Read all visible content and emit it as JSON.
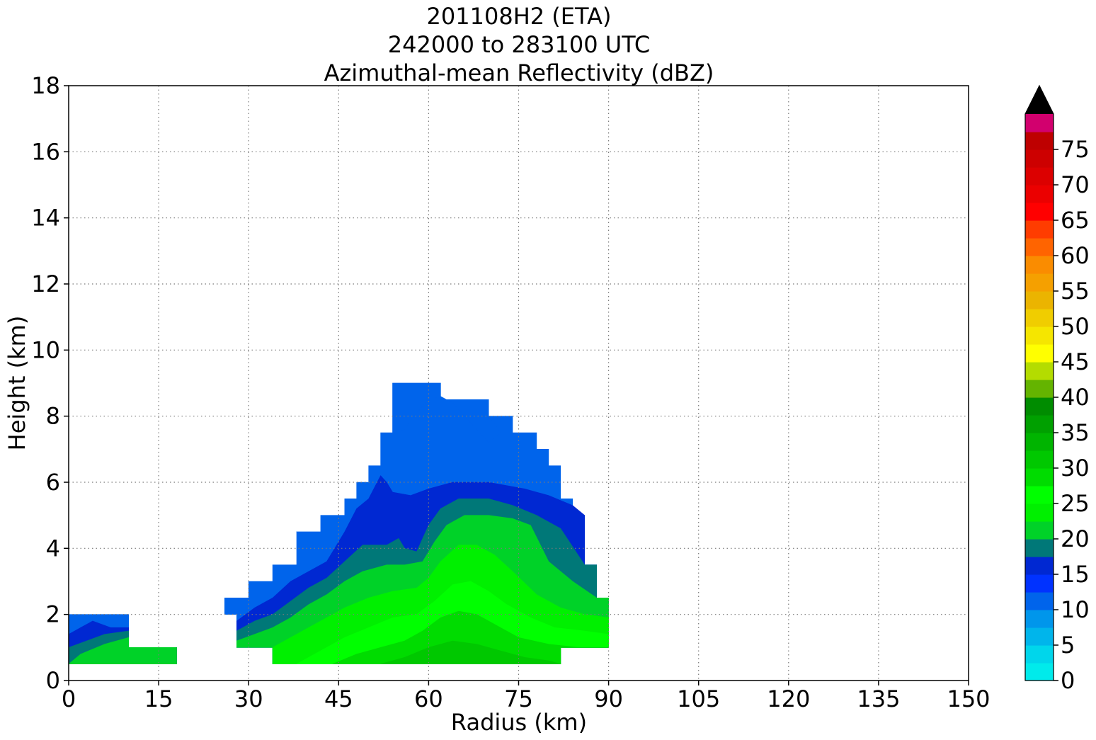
{
  "chart_data": {
    "type": "heatmap",
    "title_lines": [
      "201108H2 (ETA)",
      "242000 to 283100 UTC",
      "Azimuthal-mean Reflectivity (dBZ)"
    ],
    "xlabel": "Radius (km)",
    "ylabel": "Height (km)",
    "xlim": [
      0,
      150
    ],
    "ylim": [
      0,
      18
    ],
    "xticks": [
      "0",
      "15",
      "30",
      "45",
      "60",
      "75",
      "90",
      "105",
      "120",
      "135",
      "150"
    ],
    "yticks": [
      "0",
      "2",
      "4",
      "6",
      "8",
      "10",
      "12",
      "14",
      "16",
      "18"
    ],
    "grid": true,
    "colorbar": {
      "levels": [
        0,
        2.5,
        5,
        7.5,
        10,
        12.5,
        15,
        17.5,
        20,
        22.5,
        25,
        27.5,
        30,
        32.5,
        35,
        37.5,
        40,
        42.5,
        45,
        47.5,
        50,
        52.5,
        55,
        57.5,
        60,
        62.5,
        65,
        67.5,
        70,
        72.5,
        75,
        77.5,
        80
      ],
      "colors": [
        "#00ebeb",
        "#00d6eb",
        "#00b5eb",
        "#0096eb",
        "#0064eb",
        "#0032ff",
        "#0028d2",
        "#007878",
        "#00d228",
        "#00f000",
        "#00ff00",
        "#00dc00",
        "#00c800",
        "#00b400",
        "#00a000",
        "#008c00",
        "#64b400",
        "#b4dc00",
        "#ffff00",
        "#f5e600",
        "#f0cd00",
        "#ebb400",
        "#f5a000",
        "#fa8c00",
        "#ff6400",
        "#ff3c00",
        "#ff0000",
        "#eb0000",
        "#dc0000",
        "#cd0000",
        "#be0000",
        "#d2006e",
        "#ff00aa"
      ],
      "ticks": [
        "0",
        "5",
        "10",
        "15",
        "20",
        "25",
        "30",
        "35",
        "40",
        "45",
        "50",
        "55",
        "60",
        "65",
        "70",
        "75"
      ],
      "extend": "max"
    },
    "regions": [
      {
        "dbz": 11,
        "points": [
          [
            0,
            0.5
          ],
          [
            0,
            2
          ],
          [
            10,
            2
          ],
          [
            10,
            1
          ],
          [
            18,
            1
          ],
          [
            18,
            0.5
          ]
        ]
      },
      {
        "dbz": 16,
        "points": [
          [
            0,
            0.5
          ],
          [
            0,
            1.4
          ],
          [
            2,
            1.6
          ],
          [
            4,
            1.8
          ],
          [
            7,
            1.6
          ],
          [
            10,
            1.6
          ],
          [
            10,
            1
          ],
          [
            18,
            1
          ],
          [
            18,
            0.5
          ]
        ]
      },
      {
        "dbz": 18,
        "points": [
          [
            0,
            0.5
          ],
          [
            0,
            1.0
          ],
          [
            3,
            1.2
          ],
          [
            6,
            1.4
          ],
          [
            10,
            1.5
          ],
          [
            10,
            1
          ],
          [
            18,
            1
          ],
          [
            18,
            0.5
          ]
        ]
      },
      {
        "dbz": 20,
        "points": [
          [
            0,
            0.5
          ],
          [
            2,
            0.8
          ],
          [
            6,
            1.1
          ],
          [
            10,
            1.3
          ],
          [
            10,
            1
          ],
          [
            18,
            1
          ],
          [
            18,
            0.5
          ]
        ]
      },
      {
        "dbz": 11,
        "points": [
          [
            26,
            2
          ],
          [
            26,
            2.5
          ],
          [
            30,
            2.5
          ],
          [
            30,
            3
          ],
          [
            34,
            3
          ],
          [
            34,
            3.5
          ],
          [
            38,
            3.5
          ],
          [
            38,
            4.5
          ],
          [
            42,
            4.5
          ],
          [
            42,
            5
          ],
          [
            46,
            5
          ],
          [
            46,
            5.5
          ],
          [
            48,
            5.5
          ],
          [
            48,
            6
          ],
          [
            50,
            6
          ],
          [
            50,
            6.5
          ],
          [
            52,
            6.5
          ],
          [
            52,
            7.5
          ],
          [
            54,
            7.5
          ],
          [
            54,
            9
          ],
          [
            62,
            9
          ],
          [
            62,
            8.5
          ],
          [
            70,
            8.5
          ],
          [
            70,
            8
          ],
          [
            74,
            8
          ],
          [
            74,
            7.5
          ],
          [
            78,
            7.5
          ],
          [
            78,
            7
          ],
          [
            80,
            7
          ],
          [
            80,
            6.5
          ],
          [
            82,
            6.5
          ],
          [
            82,
            5.5
          ],
          [
            84,
            5.5
          ],
          [
            84,
            5
          ],
          [
            86,
            5
          ],
          [
            86,
            3.5
          ],
          [
            88,
            3.5
          ],
          [
            88,
            2.5
          ],
          [
            90,
            2.5
          ],
          [
            90,
            1
          ],
          [
            82,
            1
          ],
          [
            82,
            0.5
          ],
          [
            34,
            0.5
          ],
          [
            34,
            1
          ],
          [
            28,
            1
          ],
          [
            28,
            2
          ]
        ]
      },
      {
        "dbz": 16,
        "points": [
          [
            28,
            1
          ],
          [
            28,
            1.8
          ],
          [
            31,
            2.2
          ],
          [
            34,
            2.5
          ],
          [
            37,
            3.0
          ],
          [
            40,
            3.3
          ],
          [
            43,
            3.6
          ],
          [
            46,
            4.5
          ],
          [
            48,
            5.2
          ],
          [
            50,
            5.5
          ],
          [
            52,
            6.2
          ],
          [
            53,
            6
          ],
          [
            54,
            5.7
          ],
          [
            57,
            5.6
          ],
          [
            60,
            5.8
          ],
          [
            64,
            6.0
          ],
          [
            70,
            6.0
          ],
          [
            76,
            5.8
          ],
          [
            80,
            5.6
          ],
          [
            84,
            5.3
          ],
          [
            86,
            5
          ],
          [
            86,
            3.5
          ],
          [
            88,
            3.5
          ],
          [
            88,
            2.5
          ],
          [
            90,
            2.5
          ],
          [
            90,
            1
          ],
          [
            82,
            1
          ],
          [
            82,
            0.5
          ],
          [
            34,
            0.5
          ],
          [
            34,
            1
          ]
        ]
      },
      {
        "dbz": 18,
        "points": [
          [
            28,
            1
          ],
          [
            28,
            1.5
          ],
          [
            31,
            1.8
          ],
          [
            34,
            2.0
          ],
          [
            37,
            2.4
          ],
          [
            40,
            2.8
          ],
          [
            43,
            3.1
          ],
          [
            46,
            3.6
          ],
          [
            49,
            4.1
          ],
          [
            53,
            4.1
          ],
          [
            55,
            4.3
          ],
          [
            56,
            4.0
          ],
          [
            58,
            3.9
          ],
          [
            60,
            4.7
          ],
          [
            62,
            5.2
          ],
          [
            65,
            5.5
          ],
          [
            70,
            5.5
          ],
          [
            74,
            5.3
          ],
          [
            78,
            5.0
          ],
          [
            82,
            4.6
          ],
          [
            86,
            3.5
          ],
          [
            88,
            3.5
          ],
          [
            88,
            2.5
          ],
          [
            90,
            2.5
          ],
          [
            90,
            1
          ],
          [
            82,
            1
          ],
          [
            82,
            0.5
          ],
          [
            34,
            0.5
          ],
          [
            34,
            1
          ]
        ]
      },
      {
        "dbz": 20,
        "points": [
          [
            28,
            1
          ],
          [
            28,
            1.2
          ],
          [
            31,
            1.4
          ],
          [
            34,
            1.6
          ],
          [
            37,
            1.9
          ],
          [
            40,
            2.3
          ],
          [
            43,
            2.6
          ],
          [
            46,
            3.0
          ],
          [
            49,
            3.3
          ],
          [
            53,
            3.5
          ],
          [
            56,
            3.5
          ],
          [
            59,
            3.6
          ],
          [
            61,
            4.2
          ],
          [
            63,
            4.7
          ],
          [
            66,
            5.0
          ],
          [
            70,
            5.0
          ],
          [
            74,
            4.9
          ],
          [
            77,
            4.7
          ],
          [
            80,
            3.6
          ],
          [
            84,
            3.0
          ],
          [
            88,
            2.5
          ],
          [
            90,
            2.5
          ],
          [
            90,
            1
          ],
          [
            82,
            1
          ],
          [
            82,
            0.5
          ],
          [
            34,
            0.5
          ],
          [
            34,
            1
          ]
        ]
      },
      {
        "dbz": 23,
        "points": [
          [
            34,
            0.5
          ],
          [
            34,
            1.0
          ],
          [
            37,
            1.3
          ],
          [
            40,
            1.6
          ],
          [
            43,
            1.9
          ],
          [
            46,
            2.2
          ],
          [
            50,
            2.5
          ],
          [
            54,
            2.7
          ],
          [
            58,
            2.8
          ],
          [
            60,
            3.1
          ],
          [
            62,
            3.6
          ],
          [
            65,
            4.1
          ],
          [
            68,
            4.1
          ],
          [
            71,
            3.8
          ],
          [
            74,
            3.3
          ],
          [
            78,
            2.6
          ],
          [
            82,
            2.2
          ],
          [
            86,
            2.0
          ],
          [
            90,
            1.9
          ],
          [
            90,
            1
          ],
          [
            82,
            1
          ],
          [
            82,
            0.5
          ]
        ]
      },
      {
        "dbz": 26,
        "points": [
          [
            38,
            0.5
          ],
          [
            42,
            0.9
          ],
          [
            46,
            1.3
          ],
          [
            50,
            1.6
          ],
          [
            54,
            1.9
          ],
          [
            58,
            2.0
          ],
          [
            61,
            2.4
          ],
          [
            64,
            2.9
          ],
          [
            67,
            3.0
          ],
          [
            70,
            2.7
          ],
          [
            73,
            2.3
          ],
          [
            77,
            1.9
          ],
          [
            81,
            1.6
          ],
          [
            86,
            1.5
          ],
          [
            90,
            1.4
          ],
          [
            90,
            1
          ],
          [
            82,
            1
          ],
          [
            82,
            0.5
          ]
        ]
      },
      {
        "dbz": 28,
        "points": [
          [
            44,
            0.5
          ],
          [
            48,
            0.8
          ],
          [
            52,
            1.0
          ],
          [
            56,
            1.2
          ],
          [
            59,
            1.5
          ],
          [
            62,
            1.9
          ],
          [
            65,
            2.1
          ],
          [
            68,
            2.0
          ],
          [
            71,
            1.7
          ],
          [
            75,
            1.3
          ],
          [
            80,
            1.1
          ],
          [
            85,
            1.0
          ],
          [
            90,
            1.0
          ],
          [
            82,
            1
          ],
          [
            82,
            0.5
          ]
        ]
      },
      {
        "dbz": 30,
        "points": [
          [
            52,
            0.5
          ],
          [
            56,
            0.7
          ],
          [
            60,
            1.0
          ],
          [
            64,
            1.2
          ],
          [
            68,
            1.1
          ],
          [
            72,
            0.9
          ],
          [
            76,
            0.7
          ],
          [
            80,
            0.6
          ],
          [
            82,
            0.5
          ]
        ]
      },
      {
        "dbz": 12,
        "points": [
          [
            54,
            9
          ],
          [
            54,
            7.5
          ],
          [
            56,
            7.6
          ],
          [
            58,
            8.1
          ],
          [
            60,
            8.5
          ],
          [
            62,
            8.6
          ],
          [
            64,
            8.4
          ],
          [
            66,
            8.0
          ],
          [
            68,
            7.6
          ],
          [
            70,
            7.2
          ],
          [
            72,
            7.5
          ],
          [
            70,
            8
          ],
          [
            70,
            8.5
          ],
          [
            62,
            8.5
          ],
          [
            62,
            9
          ]
        ]
      },
      {
        "dbz": 12,
        "points": [
          [
            38,
            4.5
          ],
          [
            42,
            4.5
          ],
          [
            40,
            4.2
          ]
        ]
      }
    ]
  }
}
